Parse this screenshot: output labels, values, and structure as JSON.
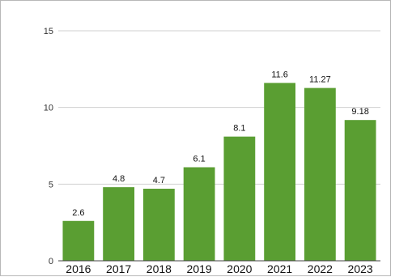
{
  "chart_data": {
    "type": "bar",
    "categories": [
      "2016",
      "2017",
      "2018",
      "2019",
      "2020",
      "2021",
      "2022",
      "2023"
    ],
    "values": [
      2.6,
      4.8,
      4.7,
      6.1,
      8.1,
      11.6,
      11.27,
      9.18
    ],
    "data_labels": [
      "2.6",
      "4.8",
      "4.7",
      "6.1",
      "8.1",
      "11.6",
      "11.27",
      "9.18"
    ],
    "y_ticks": [
      "0",
      "5",
      "10",
      "15"
    ],
    "ylim": [
      0,
      15
    ],
    "grid": true,
    "legend": "none",
    "colors": {
      "bar": "#5a9e32",
      "grid": "#d0d0d0",
      "frame": "#b8b8b8",
      "axis": "#444444"
    }
  }
}
